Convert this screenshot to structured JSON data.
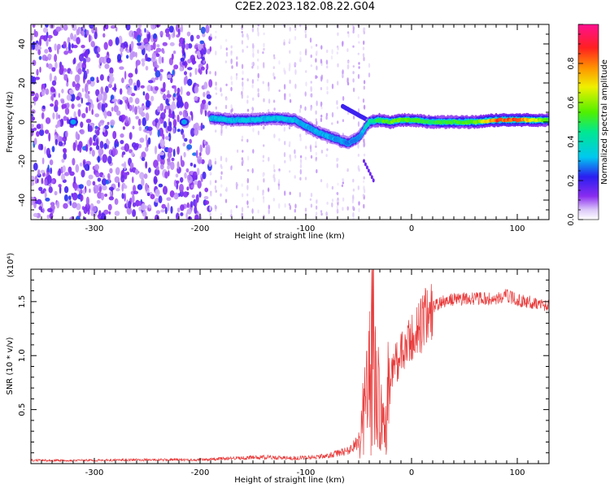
{
  "title": "C2E2.2023.182.08.22.G04",
  "chart_data": [
    {
      "type": "heatmap",
      "xlabel": "Height of straight line (km)",
      "ylabel": "Frequency (Hz)",
      "xlim": [
        -360,
        130
      ],
      "ylim": [
        -50,
        50
      ],
      "x_ticks": [
        -300,
        -200,
        -100,
        0,
        100
      ],
      "x_tick_labels": [
        "-300",
        "-200",
        "-100",
        "0",
        "100"
      ],
      "y_ticks": [
        -40,
        -20,
        0,
        20,
        40
      ],
      "y_tick_labels": [
        "-40",
        "-20",
        "0",
        "20",
        "40"
      ],
      "colorbar": {
        "label": "Normalized spectral amplitude",
        "range": [
          0,
          1
        ],
        "ticks": [
          0,
          0.2,
          0.4,
          0.6,
          0.8
        ],
        "tick_labels": [
          "0.0",
          "0.2",
          "0.4",
          "0.6",
          "0.8"
        ],
        "colormap": "rainbow (white-purple-blue-cyan-green-yellow-red-magenta)"
      },
      "noise_region": {
        "x_range": [
          -360,
          -190
        ],
        "freq_range": [
          -50,
          50
        ],
        "amplitude": 0.15
      },
      "sparse_noise_region": {
        "x_range": [
          -190,
          -40
        ],
        "amplitude": 0.05
      },
      "signal_track": {
        "x": [
          -190,
          -170,
          -150,
          -130,
          -110,
          -100,
          -90,
          -80,
          -70,
          -60,
          -50,
          -45,
          -40,
          -30,
          -20,
          -10,
          0,
          20,
          40,
          60,
          80,
          100,
          130
        ],
        "frequency": [
          2,
          1,
          1,
          2,
          1,
          -2,
          -5,
          -7,
          -9,
          -11,
          -8,
          -4,
          0,
          1,
          0,
          1,
          1,
          0,
          0,
          0,
          1,
          1,
          1
        ],
        "amplitude": [
          0.35,
          0.35,
          0.35,
          0.35,
          0.35,
          0.33,
          0.33,
          0.33,
          0.32,
          0.3,
          0.3,
          0.35,
          0.45,
          0.55,
          0.6,
          0.6,
          0.55,
          0.55,
          0.55,
          0.6,
          0.9,
          0.9,
          0.55
        ]
      }
    },
    {
      "type": "line",
      "xlabel": "Height of straight line (km)",
      "ylabel": "SNR (10 * v/v)",
      "y_multiplier_label": "(x10⁴)",
      "xlim": [
        -360,
        130
      ],
      "ylim": [
        0,
        18000
      ],
      "x_ticks": [
        -300,
        -200,
        -100,
        0,
        100
      ],
      "x_tick_labels": [
        "-300",
        "-200",
        "-100",
        "0",
        "100"
      ],
      "y_ticks": [
        5000,
        10000,
        15000
      ],
      "y_tick_labels": [
        "0.5",
        "1.0",
        "1.5"
      ],
      "color": "#e83a3a",
      "series": [
        {
          "x": [
            -360,
            -300,
            -250,
            -200,
            -170,
            -140,
            -110,
            -80,
            -60,
            -50,
            -45,
            -40,
            -37,
            -34,
            -30,
            -26,
            -22,
            -18,
            -14,
            -10,
            -6,
            -2,
            0,
            10,
            20,
            30,
            40,
            60,
            80,
            90,
            100,
            110,
            120,
            130
          ],
          "y": [
            300,
            300,
            350,
            350,
            500,
            600,
            500,
            700,
            1200,
            2000,
            5000,
            8000,
            14000,
            9000,
            5000,
            3000,
            7000,
            9000,
            9500,
            10000,
            10500,
            11000,
            11500,
            13000,
            14500,
            15000,
            15200,
            15300,
            15200,
            15600,
            15100,
            15000,
            14800,
            14600
          ]
        }
      ]
    }
  ]
}
